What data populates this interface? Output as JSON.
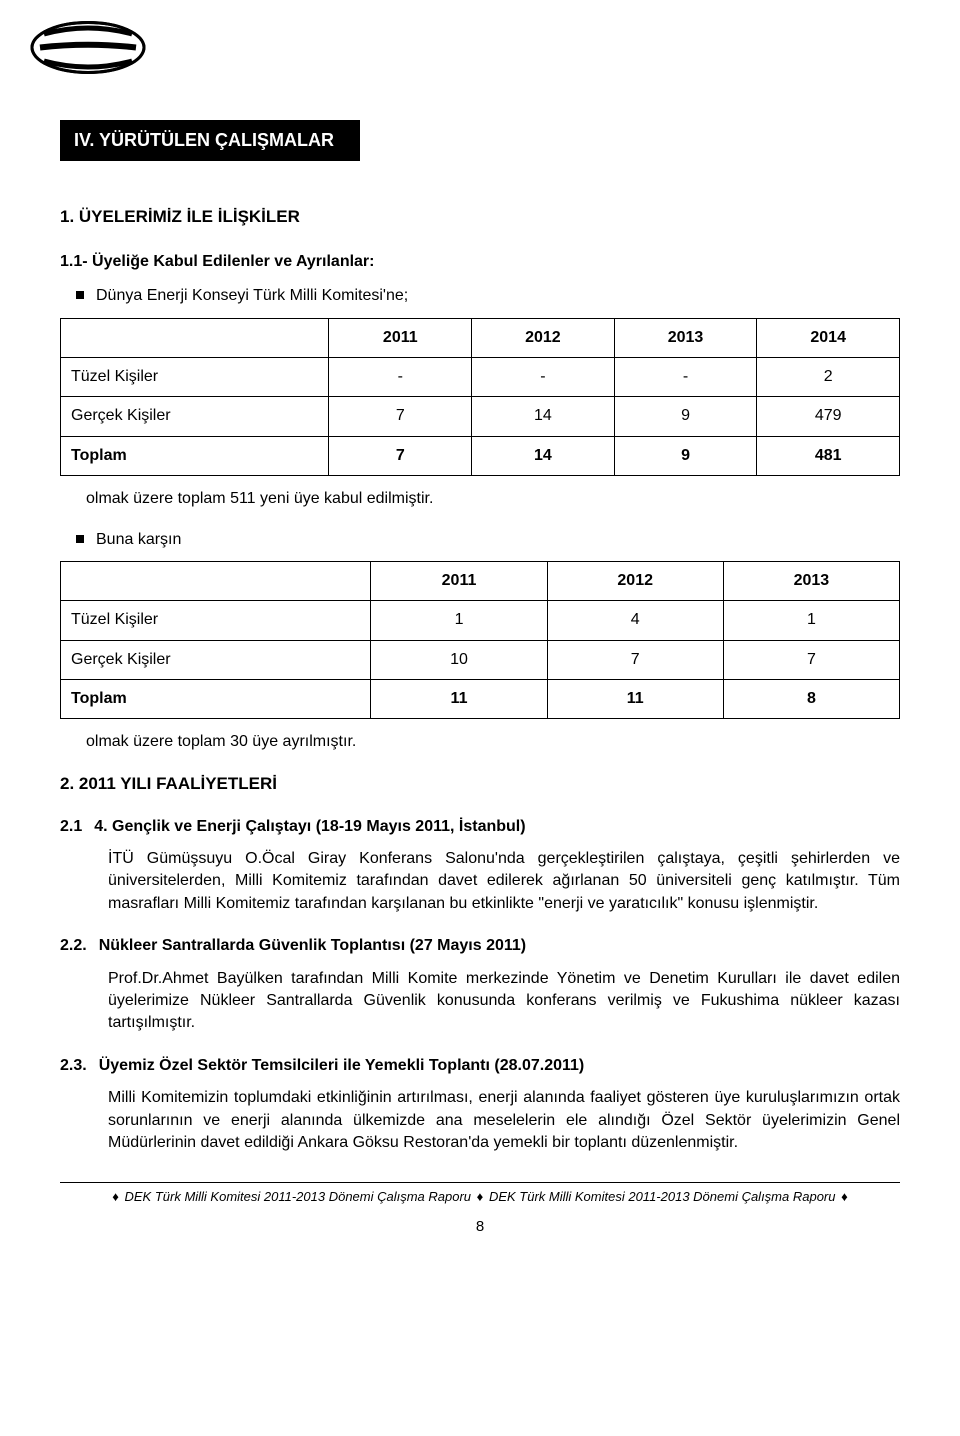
{
  "header": {
    "section_tab": "IV. YÜRÜTÜLEN ÇALIŞMALAR"
  },
  "s1": {
    "title": "1. ÜYELERİMİZ İLE İLİŞKİLER",
    "s11_title": "1.1- Üyeliğe Kabul Edilenler ve Ayrılanlar:",
    "bullet1": "Dünya Enerji Konseyi Türk Milli Komitesi'ne;",
    "table1": {
      "columns": [
        "",
        "2011",
        "2012",
        "2013",
        "2014"
      ],
      "rows": [
        [
          "Tüzel Kişiler",
          "-",
          "-",
          "-",
          "2"
        ],
        [
          "Gerçek Kişiler",
          "7",
          "14",
          "9",
          "479"
        ],
        [
          "Toplam",
          "7",
          "14",
          "9",
          "481"
        ]
      ],
      "col_widths": [
        "32%",
        "17%",
        "17%",
        "17%",
        "17%"
      ],
      "border_color": "#000000",
      "background_color": "#ffffff",
      "font_size": 16,
      "bold_last_row": true
    },
    "note1": "olmak üzere toplam 511 yeni üye kabul edilmiştir.",
    "bullet2": "Buna karşın",
    "table2": {
      "columns": [
        "",
        "2011",
        "2012",
        "2013"
      ],
      "rows": [
        [
          "Tüzel Kişiler",
          "1",
          "4",
          "1"
        ],
        [
          "Gerçek Kişiler",
          "10",
          "7",
          "7"
        ],
        [
          "Toplam",
          "11",
          "11",
          "8"
        ]
      ],
      "col_widths": [
        "37%",
        "21%",
        "21%",
        "21%"
      ],
      "border_color": "#000000",
      "background_color": "#ffffff",
      "font_size": 16,
      "bold_last_row": true
    },
    "note2": "olmak üzere toplam 30 üye ayrılmıştır."
  },
  "s2": {
    "title": "2. 2011 YILI FAALİYETLERİ",
    "i21": {
      "num": "2.1",
      "title": "4. Gençlik ve Enerji Çalıştayı (18-19 Mayıs 2011, İstanbul)",
      "para": "İTÜ Gümüşsuyu O.Öcal Giray Konferans Salonu'nda gerçekleştirilen çalıştaya, çeşitli şehirlerden ve üniversitelerden, Milli Komitemiz tarafından davet edilerek ağırlanan 50 üniversiteli genç katılmıştır. Tüm masrafları Milli Komitemiz tarafından karşılanan bu etkinlikte \"enerji ve yaratıcılık\" konusu işlenmiştir."
    },
    "i22": {
      "num": "2.2.",
      "title": "Nükleer Santrallarda Güvenlik Toplantısı (27 Mayıs 2011)",
      "para": "Prof.Dr.Ahmet Bayülken tarafından Milli Komite merkezinde Yönetim ve Denetim Kurulları ile davet edilen üyelerimize Nükleer Santrallarda Güvenlik konusunda konferans verilmiş ve Fukushima nükleer kazası tartışılmıştır."
    },
    "i23": {
      "num": "2.3.",
      "title": "Üyemiz Özel Sektör Temsilcileri ile Yemekli Toplantı (28.07.2011)",
      "para": "Milli Komitemizin toplumdaki etkinliğinin artırılması, enerji alanında faaliyet gösteren üye kuruluşlarımızın ortak sorunlarının ve enerji alanında ülkemizde ana meselelerin ele alındığı Özel Sektör üyelerimizin Genel Müdürlerinin davet edildiği Ankara Göksu Restoran'da yemekli bir toplantı düzenlenmiştir."
    }
  },
  "footer": {
    "text_a": "DEK Türk Milli Komitesi 2011-2013 Dönemi Çalışma Raporu",
    "text_b": "DEK Türk Milli Komitesi 2011-2013 Dönemi Çalışma Raporu",
    "page_number": "8",
    "diamond": "♦"
  },
  "logo": {
    "stroke": "#000000",
    "fill": "#000000"
  }
}
